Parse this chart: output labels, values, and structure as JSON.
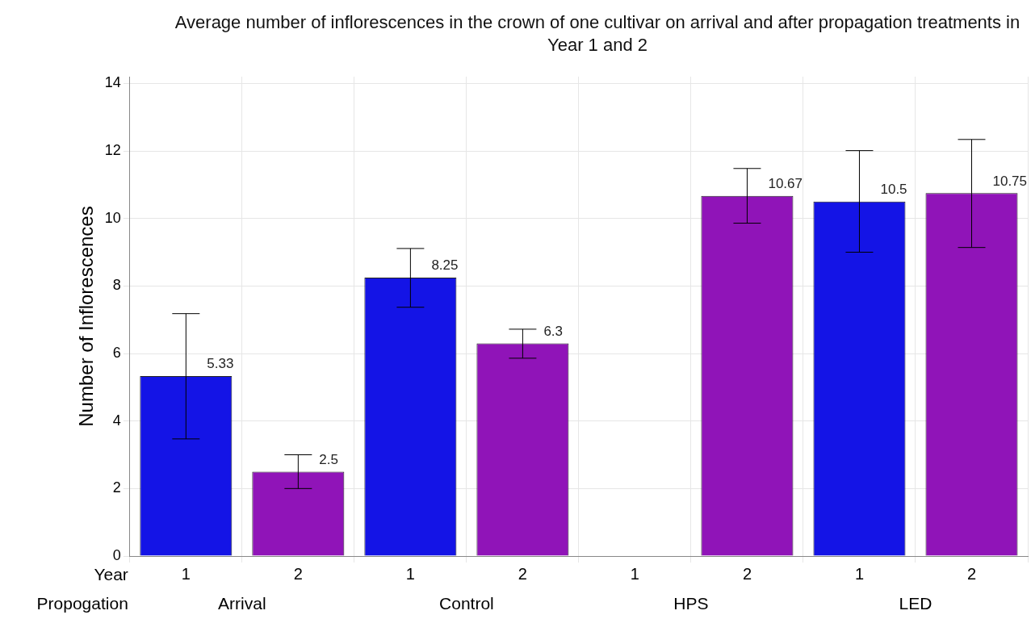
{
  "chart_data": {
    "type": "bar",
    "title": "Average number of inflorescences in the crown of one cultivar on arrival and after propagation treatments in Year 1 and 2",
    "ylabel": "Number of Inflorescences",
    "categories": [
      "1",
      "2",
      "1",
      "2",
      "1",
      "2",
      "1",
      "2"
    ],
    "values": [
      5.33,
      2.5,
      8.25,
      6.3,
      null,
      10.67,
      10.5,
      10.75
    ],
    "colors": [
      "#1414e6",
      "#9014b8",
      "#1414e6",
      "#9014b8",
      "#1414e6",
      "#9014b8",
      "#1414e6",
      "#9014b8"
    ],
    "errors": [
      [
        3.47,
        7.18
      ],
      [
        2.0,
        3.0
      ],
      [
        7.37,
        9.11
      ],
      [
        5.86,
        6.72
      ],
      null,
      [
        9.86,
        11.48
      ],
      [
        9.0,
        12.01
      ],
      [
        9.14,
        12.34
      ]
    ],
    "data_labels": true,
    "ylim": [
      0,
      14.2
    ],
    "yticks": [
      0,
      2,
      4,
      6,
      8,
      10,
      12,
      14
    ],
    "grid": true,
    "annotations": [
      "Year",
      "Propogation",
      "Arrival",
      "Control",
      "HPS",
      "LED"
    ]
  }
}
